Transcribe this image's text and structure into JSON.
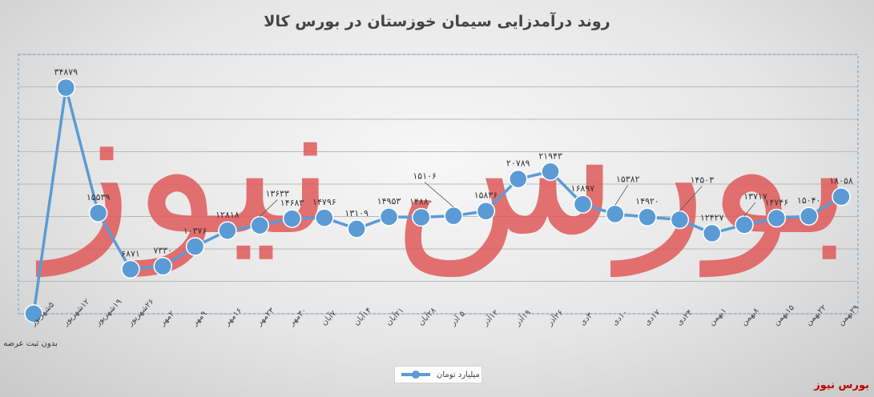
{
  "chart_data": {
    "type": "line",
    "title": "روند درآمدزایی سیمان خوزستان در بورس کالا",
    "series": [
      {
        "name": "میلیارد تومان",
        "color": "#5b9bd5"
      }
    ],
    "categories": [
      "۵شهریور",
      "۱۲شهریور",
      "۱۹شهریور",
      "۲۶شهریور",
      "۲مهر",
      "۹مهر",
      "۱۶مهر",
      "۲۳مهر",
      "۳۰مهر",
      "۷آبان",
      "۱۴آبان",
      "۲۱آبان",
      "۲۸آبان",
      "۵ آذر",
      "۱۲آذر",
      "۱۹آذر",
      "۲۶آذر",
      "۳دی",
      "۱۰دی",
      "۱۷دی",
      "۲۴دی",
      "۱بهمن",
      "۸بهمن",
      "۱۵بهمن",
      "۲۲بهمن",
      "۲۹بهمن"
    ],
    "values": [
      21,
      34879,
      15539,
      6871,
      7330,
      10376,
      12818,
      13633,
      14683,
      14796,
      13109,
      14953,
      14880,
      15106,
      15836,
      20789,
      21943,
      16897,
      15382,
      14920,
      14503,
      12427,
      13717,
      14746,
      15040,
      18058
    ],
    "labels": [
      null,
      "۳۴۸۷۹",
      "۱۵۵۳۹",
      "۶۸۷۱",
      "۷۳۳۰",
      "۱۰۳۷۶",
      "۱۲۸۱۸",
      "۱۳۶۳۳",
      "۱۴۶۸۳",
      "۱۴۷۹۶",
      "۱۳۱۰۹",
      "۱۴۹۵۳",
      "۱۴۸۸۰",
      "۱۵۱۰۶",
      "۱۵۸۳۶",
      "۲۰۷۸۹",
      "۲۱۹۴۳",
      "۱۶۸۹۷",
      "۱۵۳۸۲",
      "۱۴۹۲۰",
      "۱۴۵۰۳",
      "۱۲۴۲۷",
      "۱۳۷۱۷",
      "۱۴۷۴۶",
      "۱۵۰۴۰",
      "۱۸۰۵۸"
    ],
    "first_point_note": "بدون ثبت عرضه",
    "ylim": [
      0,
      40000
    ],
    "grid": true,
    "legend_position": "bottom"
  },
  "watermark": "بورس نیوز",
  "credit": "بورس نیوز"
}
